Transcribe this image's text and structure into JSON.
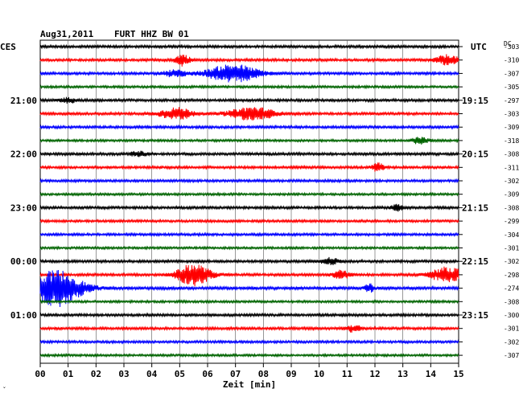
{
  "header": {
    "date": "Aug31,2011",
    "station": "FURT HHZ BW 01",
    "left_tz": "CES",
    "right_tz": "UTC",
    "dc_label": "DC"
  },
  "chart_data": {
    "type": "line",
    "title": "Aug31,2011   FURT HHZ BW 01",
    "xlabel": "Zeit [min]",
    "xlim": [
      0,
      15
    ],
    "x_ticks": [
      "00",
      "01",
      "02",
      "03",
      "04",
      "05",
      "06",
      "07",
      "08",
      "09",
      "10",
      "11",
      "12",
      "13",
      "14",
      "15"
    ],
    "grid": true,
    "left_time_labels": [
      {
        "trace": 4,
        "label": "21:00"
      },
      {
        "trace": 8,
        "label": "22:00"
      },
      {
        "trace": 12,
        "label": "23:00"
      },
      {
        "trace": 16,
        "label": "00:00"
      },
      {
        "trace": 20,
        "label": "01:00"
      }
    ],
    "right_time_labels": [
      {
        "trace": 4,
        "label": "19:15"
      },
      {
        "trace": 8,
        "label": "20:15"
      },
      {
        "trace": 12,
        "label": "21:15"
      },
      {
        "trace": 16,
        "label": "22:15"
      },
      {
        "trace": 20,
        "label": "23:15"
      }
    ],
    "colors": {
      "black": "#000000",
      "red": "#ff0000",
      "blue": "#0000ff",
      "green": "#006400"
    },
    "traces": [
      {
        "color": "black",
        "dc": "-303",
        "noise": 1.6,
        "events": []
      },
      {
        "color": "red",
        "dc": "-310",
        "noise": 1.6,
        "events": [
          [
            5.1,
            0.25,
            7
          ],
          [
            14.6,
            0.4,
            6
          ]
        ]
      },
      {
        "color": "blue",
        "dc": "-307",
        "noise": 1.6,
        "events": [
          [
            6.9,
            0.9,
            11
          ],
          [
            4.8,
            0.4,
            4
          ]
        ]
      },
      {
        "color": "green",
        "dc": "-305",
        "noise": 1.4,
        "events": []
      },
      {
        "color": "black",
        "dc": "-297",
        "noise": 1.6,
        "events": [
          [
            1.0,
            0.3,
            3
          ]
        ]
      },
      {
        "color": "red",
        "dc": "-303",
        "noise": 1.6,
        "events": [
          [
            4.9,
            0.6,
            7
          ],
          [
            7.6,
            0.8,
            8
          ]
        ]
      },
      {
        "color": "blue",
        "dc": "-309",
        "noise": 1.6,
        "events": []
      },
      {
        "color": "green",
        "dc": "-318",
        "noise": 1.4,
        "events": [
          [
            13.6,
            0.3,
            4
          ]
        ]
      },
      {
        "color": "black",
        "dc": "-308",
        "noise": 1.6,
        "events": [
          [
            3.5,
            0.3,
            3
          ]
        ]
      },
      {
        "color": "red",
        "dc": "-311",
        "noise": 1.6,
        "events": [
          [
            12.1,
            0.2,
            5
          ]
        ]
      },
      {
        "color": "blue",
        "dc": "-302",
        "noise": 1.5,
        "events": []
      },
      {
        "color": "green",
        "dc": "-309",
        "noise": 1.4,
        "events": []
      },
      {
        "color": "black",
        "dc": "-308",
        "noise": 1.6,
        "events": [
          [
            12.8,
            0.2,
            4
          ]
        ]
      },
      {
        "color": "red",
        "dc": "-299",
        "noise": 1.5,
        "events": []
      },
      {
        "color": "blue",
        "dc": "-304",
        "noise": 1.5,
        "events": []
      },
      {
        "color": "green",
        "dc": "-301",
        "noise": 1.4,
        "events": []
      },
      {
        "color": "black",
        "dc": "-302",
        "noise": 1.6,
        "events": [
          [
            10.4,
            0.3,
            4
          ]
        ]
      },
      {
        "color": "red",
        "dc": "-298",
        "noise": 1.6,
        "events": [
          [
            5.5,
            0.6,
            13
          ],
          [
            14.6,
            0.6,
            9
          ],
          [
            10.8,
            0.3,
            5
          ]
        ]
      },
      {
        "color": "blue",
        "dc": "-274",
        "noise": 1.8,
        "events": [
          [
            0.6,
            0.9,
            22
          ],
          [
            11.8,
            0.15,
            5
          ]
        ]
      },
      {
        "color": "green",
        "dc": "-308",
        "noise": 1.4,
        "events": []
      },
      {
        "color": "black",
        "dc": "-300",
        "noise": 1.6,
        "events": []
      },
      {
        "color": "red",
        "dc": "-301",
        "noise": 1.6,
        "events": [
          [
            11.2,
            0.3,
            4
          ]
        ]
      },
      {
        "color": "blue",
        "dc": "-302",
        "noise": 1.5,
        "events": []
      },
      {
        "color": "green",
        "dc": "-307",
        "noise": 1.4,
        "events": []
      }
    ]
  },
  "footer": {
    "corner_mark": "ˇ"
  }
}
